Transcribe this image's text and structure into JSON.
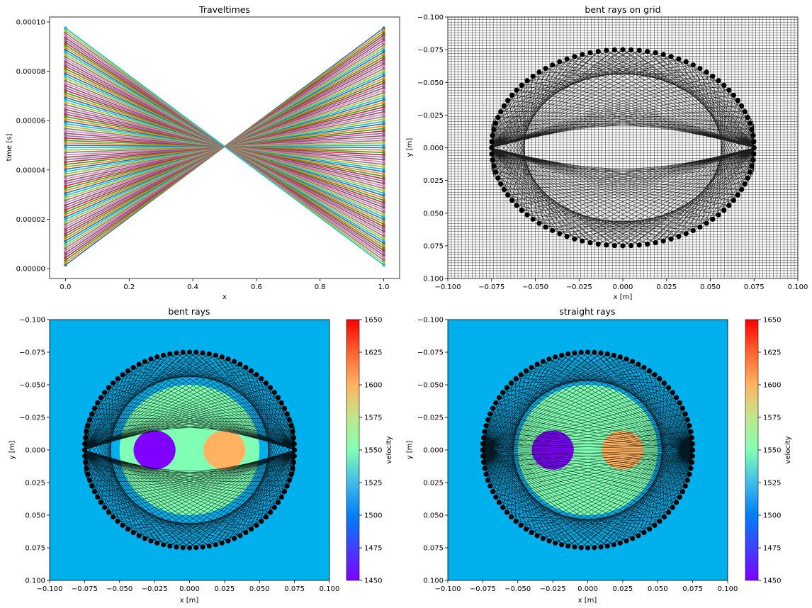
{
  "chart_data": [
    {
      "type": "line",
      "title": "Traveltimes",
      "xlabel": "x",
      "ylabel": "time [s]",
      "xlim": [
        -0.05,
        1.05
      ],
      "ylim": [
        -4e-06,
        0.000102
      ],
      "xticks": [
        "0.0",
        "0.2",
        "0.4",
        "0.6",
        "0.8",
        "1.0"
      ],
      "yticks": [
        "0.00000",
        "0.00002",
        "0.00004",
        "0.00006",
        "0.00008",
        "0.00010"
      ],
      "xtick_values": [
        0.0,
        0.2,
        0.4,
        0.6,
        0.8,
        1.0
      ],
      "ytick_values": [
        0,
        2e-05,
        4e-05,
        6e-05,
        8e-05,
        0.0001
      ],
      "x": [
        0,
        1
      ],
      "series_count": 100,
      "series_description": "Each series connects a travel time at x=0 to one at x=1; start values range from 0.0000015 to 0.000097 and end values range from 0.0000015 to 0.0000975, crossing near x=0.5, t=0.00005-0.00007",
      "t_min": 1.5e-06,
      "t_max": 9.75e-05,
      "marker": "dot",
      "grid": false,
      "legend": "none"
    },
    {
      "type": "scatter",
      "title": "bent rays on grid",
      "xlabel": "x [m]",
      "ylabel": "y [m]",
      "xlim": [
        -0.1,
        0.1
      ],
      "ylim": [
        -0.1,
        0.1
      ],
      "y_inverted": true,
      "xticks": [
        "−0.100",
        "−0.075",
        "−0.050",
        "−0.025",
        "0.000",
        "0.025",
        "0.050",
        "0.075",
        "0.100"
      ],
      "yticks": [
        "−0.100",
        "−0.075",
        "−0.050",
        "−0.025",
        "0.000",
        "0.025",
        "0.050",
        "0.075",
        "0.100"
      ],
      "tick_values": [
        -0.1,
        -0.075,
        -0.05,
        -0.025,
        0,
        0.025,
        0.05,
        0.075,
        0.1
      ],
      "grid": true,
      "grid_spacing": 0.002,
      "sensor_ring_radius": 0.075,
      "sensor_count": 100,
      "ray_type": "bent"
    },
    {
      "type": "heatmap",
      "title": "bent rays",
      "xlabel": "x [m]",
      "ylabel": "y [m]",
      "xlim": [
        -0.1,
        0.1
      ],
      "ylim": [
        -0.1,
        0.1
      ],
      "y_inverted": true,
      "xticks": [
        "−0.100",
        "−0.075",
        "−0.050",
        "−0.025",
        "0.000",
        "0.025",
        "0.050",
        "0.075",
        "0.100"
      ],
      "yticks": [
        "−0.100",
        "−0.075",
        "−0.050",
        "−0.025",
        "0.000",
        "0.025",
        "0.050",
        "0.075",
        "0.100"
      ],
      "tick_values": [
        -0.1,
        -0.075,
        -0.05,
        -0.025,
        0,
        0.025,
        0.05,
        0.075,
        0.1
      ],
      "colorbar": {
        "label": "velocity",
        "min": 1450,
        "max": 1650,
        "ticks": [
          "1450",
          "1475",
          "1500",
          "1525",
          "1550",
          "1575",
          "1600",
          "1625",
          "1650"
        ],
        "tick_values": [
          1450,
          1475,
          1500,
          1525,
          1550,
          1575,
          1600,
          1625,
          1650
        ],
        "colormap": "rainbow"
      },
      "background_velocity": 1500,
      "inclusions": [
        {
          "shape": "circle",
          "center": [
            0,
            0
          ],
          "radius": 0.05,
          "velocity": 1550
        },
        {
          "shape": "circle",
          "center": [
            -0.025,
            0
          ],
          "radius": 0.015,
          "velocity": 1450
        },
        {
          "shape": "circle",
          "center": [
            0.025,
            0
          ],
          "radius": 0.015,
          "velocity": 1600
        }
      ],
      "sensor_ring_radius": 0.075,
      "sensor_count": 100,
      "ray_type": "bent"
    },
    {
      "type": "heatmap",
      "title": "straight rays",
      "xlabel": "x [m]",
      "ylabel": "y [m]",
      "xlim": [
        -0.1,
        0.1
      ],
      "ylim": [
        -0.1,
        0.1
      ],
      "y_inverted": true,
      "xticks": [
        "−0.100",
        "−0.075",
        "−0.050",
        "−0.025",
        "0.000",
        "0.025",
        "0.050",
        "0.075",
        "0.100"
      ],
      "yticks": [
        "−0.100",
        "−0.075",
        "−0.050",
        "−0.025",
        "0.000",
        "0.025",
        "0.050",
        "0.075",
        "0.100"
      ],
      "tick_values": [
        -0.1,
        -0.075,
        -0.05,
        -0.025,
        0,
        0.025,
        0.05,
        0.075,
        0.1
      ],
      "colorbar": {
        "label": "velocity",
        "min": 1450,
        "max": 1650,
        "ticks": [
          "1450",
          "1475",
          "1500",
          "1525",
          "1550",
          "1575",
          "1600",
          "1625",
          "1650"
        ],
        "tick_values": [
          1450,
          1475,
          1500,
          1525,
          1550,
          1575,
          1600,
          1625,
          1650
        ],
        "colormap": "rainbow"
      },
      "background_velocity": 1500,
      "inclusions": [
        {
          "shape": "circle",
          "center": [
            0,
            0
          ],
          "radius": 0.05,
          "velocity": 1550
        },
        {
          "shape": "circle",
          "center": [
            -0.025,
            0
          ],
          "radius": 0.015,
          "velocity": 1450
        },
        {
          "shape": "circle",
          "center": [
            0.025,
            0
          ],
          "radius": 0.015,
          "velocity": 1600
        }
      ],
      "sensor_ring_radius": 0.075,
      "sensor_count": 100,
      "ray_type": "straight"
    }
  ],
  "colors": {
    "series_cycle": [
      "#1f77b4",
      "#ff7f0e",
      "#2ca02c",
      "#d62728",
      "#9467bd",
      "#8c564b",
      "#e377c2",
      "#7f7f7f",
      "#bcbd22",
      "#17becf"
    ],
    "v1450": "#7f00ff",
    "v1500": "#00b0ec",
    "v1550": "#80ffb4",
    "v1600": "#ffb360",
    "v1650": "#ff0000",
    "ray": "#000000",
    "sensor": "#000000"
  }
}
